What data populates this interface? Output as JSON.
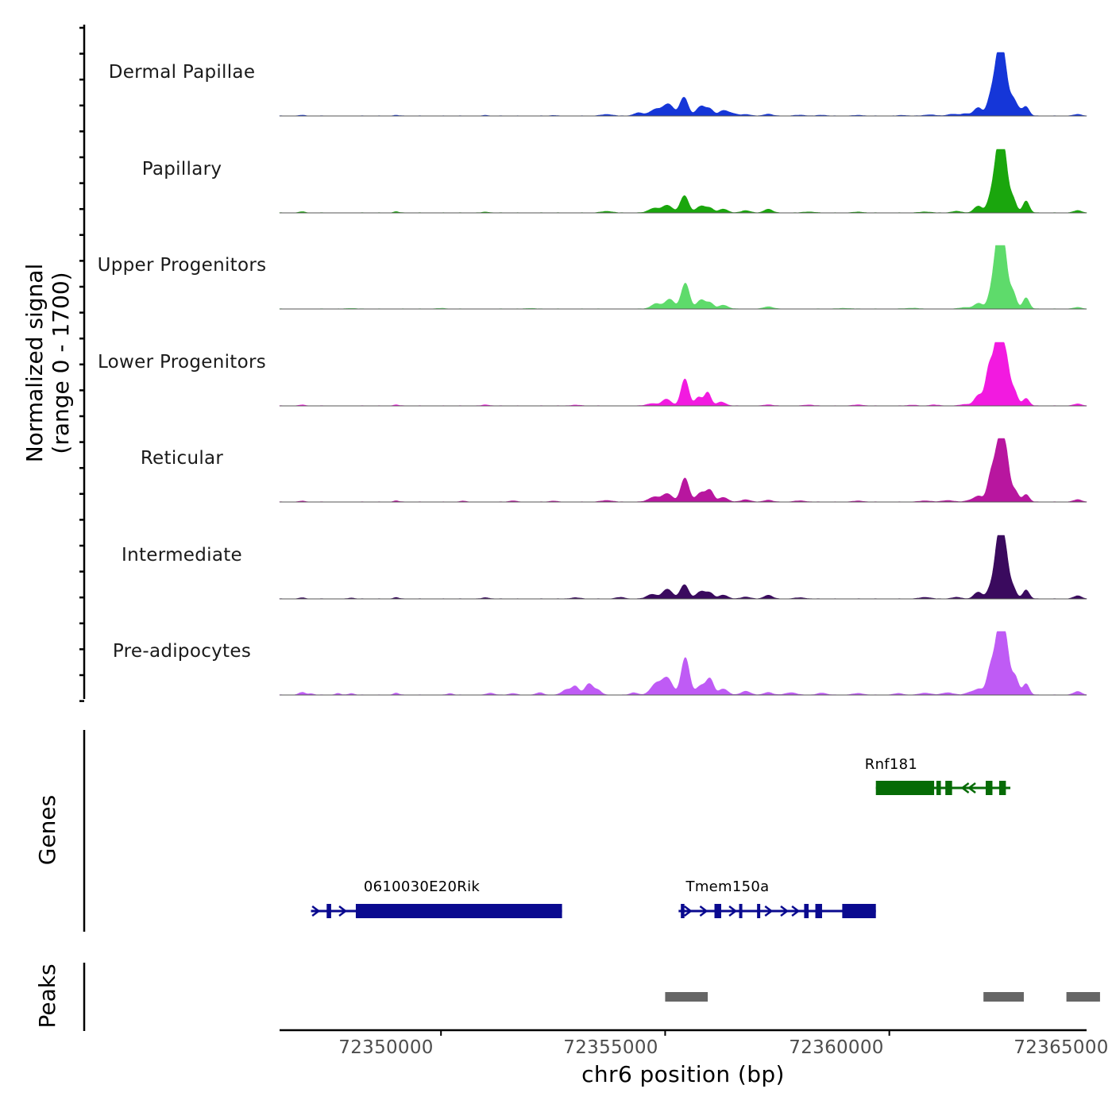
{
  "chart_data": {
    "type": "area",
    "chromosome": "chr6",
    "xlabel": "chr6 position (bp)",
    "ylabel": "Normalized signal (range 0 - 1700)",
    "ylabel_line1": "Normalized signal",
    "ylabel_line2": "(range 0 - 1700)",
    "xlim": [
      72346400,
      72364400
    ],
    "ylim": [
      0,
      1700
    ],
    "x_ticks": [
      72350000,
      72355000,
      72360000,
      72365000
    ],
    "x_tick_labels": [
      "72350000",
      "72355000",
      "72360000",
      "72365000"
    ],
    "series": [
      {
        "name": "Dermal Papillae",
        "color": "#1536d8",
        "peaks": [
          [
            72346900,
            20,
            60
          ],
          [
            72349000,
            18,
            60
          ],
          [
            72351000,
            15,
            60
          ],
          [
            72352500,
            14,
            60
          ],
          [
            72353700,
            40,
            120
          ],
          [
            72354400,
            80,
            100
          ],
          [
            72354800,
            180,
            140
          ],
          [
            72355080,
            300,
            110
          ],
          [
            72355420,
            500,
            90
          ],
          [
            72355800,
            260,
            100
          ],
          [
            72356000,
            170,
            80
          ],
          [
            72356300,
            140,
            100
          ],
          [
            72356500,
            60,
            100
          ],
          [
            72356800,
            40,
            100
          ],
          [
            72357300,
            50,
            90
          ],
          [
            72358000,
            20,
            120
          ],
          [
            72358500,
            20,
            100
          ],
          [
            72359300,
            15,
            120
          ],
          [
            72360300,
            15,
            100
          ],
          [
            72360900,
            30,
            120
          ],
          [
            72361400,
            45,
            110
          ],
          [
            72361700,
            60,
            100
          ],
          [
            72361980,
            220,
            90
          ],
          [
            72362250,
            400,
            80
          ],
          [
            72362430,
            1500,
            95
          ],
          [
            72362560,
            1100,
            85
          ],
          [
            72362750,
            400,
            80
          ],
          [
            72362880,
            140,
            80
          ],
          [
            72363050,
            240,
            70
          ],
          [
            72364200,
            40,
            90
          ]
        ]
      },
      {
        "name": "Papillary",
        "color": "#1aa60d",
        "peaks": [
          [
            72346900,
            30,
            60
          ],
          [
            72349000,
            30,
            60
          ],
          [
            72351000,
            20,
            80
          ],
          [
            72353700,
            40,
            120
          ],
          [
            72354750,
            120,
            120
          ],
          [
            72355050,
            200,
            110
          ],
          [
            72355430,
            460,
            90
          ],
          [
            72355800,
            180,
            100
          ],
          [
            72356000,
            120,
            80
          ],
          [
            72356300,
            100,
            100
          ],
          [
            72356800,
            60,
            100
          ],
          [
            72357300,
            100,
            90
          ],
          [
            72358200,
            25,
            120
          ],
          [
            72359300,
            20,
            120
          ],
          [
            72360800,
            25,
            120
          ],
          [
            72361500,
            40,
            110
          ],
          [
            72361980,
            180,
            90
          ],
          [
            72362250,
            300,
            80
          ],
          [
            72362430,
            1600,
            95
          ],
          [
            72362560,
            1250,
            85
          ],
          [
            72362750,
            380,
            80
          ],
          [
            72363050,
            320,
            70
          ],
          [
            72364200,
            60,
            90
          ]
        ]
      },
      {
        "name": "Upper Progenitors",
        "color": "#5edb6b",
        "peaks": [
          [
            72348000,
            15,
            100
          ],
          [
            72350000,
            15,
            100
          ],
          [
            72352000,
            15,
            100
          ],
          [
            72354800,
            140,
            110
          ],
          [
            72355100,
            260,
            100
          ],
          [
            72355450,
            690,
            90
          ],
          [
            72355800,
            240,
            90
          ],
          [
            72356000,
            160,
            80
          ],
          [
            72356300,
            100,
            100
          ],
          [
            72357300,
            60,
            100
          ],
          [
            72359000,
            15,
            140
          ],
          [
            72360500,
            20,
            140
          ],
          [
            72361700,
            40,
            120
          ],
          [
            72361990,
            150,
            90
          ],
          [
            72362260,
            300,
            80
          ],
          [
            72362420,
            1650,
            90
          ],
          [
            72362550,
            1400,
            85
          ],
          [
            72362750,
            450,
            80
          ],
          [
            72363050,
            300,
            70
          ],
          [
            72364200,
            40,
            90
          ]
        ]
      },
      {
        "name": "Lower Progenitors",
        "color": "#f21ae0",
        "peaks": [
          [
            72346900,
            25,
            60
          ],
          [
            72349000,
            25,
            60
          ],
          [
            72351000,
            25,
            80
          ],
          [
            72353000,
            20,
            100
          ],
          [
            72354700,
            60,
            110
          ],
          [
            72355030,
            180,
            100
          ],
          [
            72355440,
            720,
            85
          ],
          [
            72355750,
            230,
            80
          ],
          [
            72355950,
            360,
            70
          ],
          [
            72356250,
            100,
            100
          ],
          [
            72357300,
            30,
            90
          ],
          [
            72358200,
            25,
            100
          ],
          [
            72359300,
            25,
            120
          ],
          [
            72360500,
            20,
            100
          ],
          [
            72361000,
            25,
            100
          ],
          [
            72361700,
            40,
            110
          ],
          [
            72361990,
            280,
            90
          ],
          [
            72362230,
            1000,
            85
          ],
          [
            72362430,
            1900,
            90
          ],
          [
            72362600,
            1150,
            80
          ],
          [
            72362780,
            400,
            80
          ],
          [
            72363050,
            200,
            70
          ],
          [
            72364200,
            50,
            90
          ]
        ]
      },
      {
        "name": "Reticular",
        "color": "#b8169f",
        "peaks": [
          [
            72346900,
            25,
            60
          ],
          [
            72349000,
            30,
            60
          ],
          [
            72350500,
            25,
            60
          ],
          [
            72351600,
            30,
            80
          ],
          [
            72352500,
            25,
            80
          ],
          [
            72353700,
            40,
            120
          ],
          [
            72354750,
            130,
            120
          ],
          [
            72355050,
            220,
            110
          ],
          [
            72355440,
            640,
            90
          ],
          [
            72355800,
            250,
            100
          ],
          [
            72356000,
            300,
            80
          ],
          [
            72356300,
            120,
            100
          ],
          [
            72356800,
            60,
            100
          ],
          [
            72357300,
            50,
            90
          ],
          [
            72358000,
            30,
            120
          ],
          [
            72359300,
            25,
            120
          ],
          [
            72360800,
            30,
            120
          ],
          [
            72361300,
            40,
            120
          ],
          [
            72361800,
            45,
            100
          ],
          [
            72361990,
            150,
            90
          ],
          [
            72362270,
            700,
            85
          ],
          [
            72362450,
            1500,
            90
          ],
          [
            72362600,
            1150,
            80
          ],
          [
            72362800,
            300,
            80
          ],
          [
            72363050,
            200,
            70
          ],
          [
            72364200,
            60,
            90
          ]
        ]
      },
      {
        "name": "Intermediate",
        "color": "#3a0a5e",
        "peaks": [
          [
            72346900,
            30,
            60
          ],
          [
            72348000,
            25,
            60
          ],
          [
            72349000,
            35,
            60
          ],
          [
            72351000,
            30,
            80
          ],
          [
            72353000,
            30,
            100
          ],
          [
            72354000,
            40,
            100
          ],
          [
            72354700,
            120,
            110
          ],
          [
            72355050,
            260,
            110
          ],
          [
            72355430,
            380,
            90
          ],
          [
            72355800,
            200,
            100
          ],
          [
            72356000,
            150,
            80
          ],
          [
            72356300,
            100,
            100
          ],
          [
            72356800,
            50,
            100
          ],
          [
            72357300,
            100,
            90
          ],
          [
            72358000,
            30,
            120
          ],
          [
            72360800,
            40,
            120
          ],
          [
            72361500,
            40,
            110
          ],
          [
            72361980,
            180,
            90
          ],
          [
            72362250,
            240,
            80
          ],
          [
            72362440,
            1600,
            90
          ],
          [
            72362580,
            1100,
            80
          ],
          [
            72362750,
            300,
            80
          ],
          [
            72363050,
            240,
            70
          ],
          [
            72364200,
            80,
            90
          ]
        ]
      },
      {
        "name": "Pre-adipocytes",
        "color": "#bf5bf5",
        "peaks": [
          [
            72346900,
            70,
            70
          ],
          [
            72347100,
            35,
            60
          ],
          [
            72347700,
            40,
            60
          ],
          [
            72348000,
            40,
            60
          ],
          [
            72349000,
            50,
            60
          ],
          [
            72350200,
            40,
            60
          ],
          [
            72351100,
            50,
            80
          ],
          [
            72351600,
            40,
            80
          ],
          [
            72352200,
            60,
            80
          ],
          [
            72352800,
            140,
            100
          ],
          [
            72353000,
            220,
            80
          ],
          [
            72353300,
            300,
            90
          ],
          [
            72353500,
            120,
            80
          ],
          [
            72354300,
            60,
            80
          ],
          [
            72354800,
            300,
            120
          ],
          [
            72355050,
            440,
            110
          ],
          [
            72355450,
            1000,
            90
          ],
          [
            72355800,
            250,
            100
          ],
          [
            72356000,
            420,
            80
          ],
          [
            72356300,
            160,
            100
          ],
          [
            72356800,
            100,
            100
          ],
          [
            72357300,
            70,
            90
          ],
          [
            72357800,
            60,
            120
          ],
          [
            72358500,
            50,
            100
          ],
          [
            72359300,
            40,
            120
          ],
          [
            72360200,
            40,
            100
          ],
          [
            72360800,
            50,
            120
          ],
          [
            72361300,
            60,
            120
          ],
          [
            72361800,
            70,
            100
          ],
          [
            72362000,
            150,
            90
          ],
          [
            72362260,
            700,
            85
          ],
          [
            72362450,
            1700,
            90
          ],
          [
            72362600,
            1200,
            80
          ],
          [
            72362800,
            500,
            80
          ],
          [
            72363050,
            300,
            70
          ],
          [
            72364200,
            90,
            90
          ]
        ]
      }
    ],
    "genes_track": {
      "label": "Genes",
      "genes": [
        {
          "name": "Rnf181",
          "color": "#066b06",
          "strand": "-",
          "row": 1,
          "start": 72359700,
          "end": 72362700,
          "exons": [
            [
              72359700,
              72361000
            ],
            [
              72361050,
              72361150
            ],
            [
              72361250,
              72361400
            ],
            [
              72362150,
              72362300
            ],
            [
              72362450,
              72362600
            ]
          ],
          "arrows": [
            72361700,
            72361850
          ]
        },
        {
          "name": "0610030E20Rik",
          "color": "#0a0a8f",
          "strand": "+",
          "row": 2,
          "start": 72347100,
          "end": 72352700,
          "exons": [
            [
              72347450,
              72347550
            ],
            [
              72348100,
              72352700
            ]
          ],
          "arrows": [
            72347200,
            72347800
          ]
        },
        {
          "name": "Tmem150a",
          "color": "#0a0a8f",
          "strand": "+",
          "row": 2,
          "start": 72355300,
          "end": 72359700,
          "exons": [
            [
              72355350,
              72355430
            ],
            [
              72356100,
              72356250
            ],
            [
              72356650,
              72356700
            ],
            [
              72357050,
              72357100
            ],
            [
              72358100,
              72358200
            ],
            [
              72358350,
              72358500
            ],
            [
              72358950,
              72359700
            ]
          ],
          "arrows": [
            72355500,
            72355850,
            72356500,
            72357300,
            72357650,
            72357900
          ]
        }
      ]
    },
    "peaks_track": {
      "label": "Peaks",
      "color": "#666666",
      "regions": [
        [
          72355000,
          72355950
        ],
        [
          72362100,
          72363000
        ],
        [
          72363950,
          72364700
        ]
      ]
    }
  }
}
